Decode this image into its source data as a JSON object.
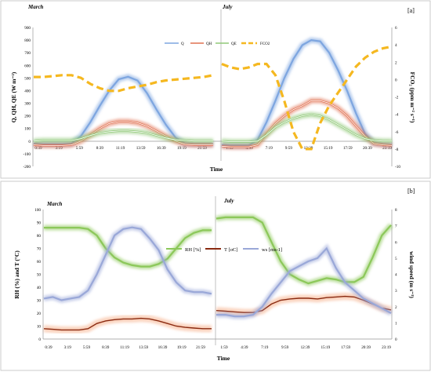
{
  "panel_labels": {
    "a": "[a]",
    "b": "[b]"
  },
  "charts": [
    {
      "id": "a",
      "months": [
        "March",
        "July"
      ],
      "xlabel": "Time",
      "ylabel": "Q, QH, QE (W m⁻²)",
      "y2label": "FCO₂ (ppm m⁻² s⁻¹)",
      "yticks": [
        "900",
        "800",
        "700",
        "600",
        "500",
        "400",
        "300",
        "200",
        "100",
        "0",
        "-100",
        "-200"
      ],
      "y2ticks": [
        "6",
        "4",
        "2",
        "0",
        "-2",
        "-4",
        "-6",
        "-8",
        "-10"
      ],
      "xticks_left": [
        "0:39",
        "3:19",
        "5:59",
        "8:39",
        "11:19",
        "13:59",
        "16:39",
        "19:19",
        "21:59"
      ],
      "xticks_right": [
        "1:59",
        "4:39",
        "7:19",
        "9:59",
        "12:39",
        "15:19",
        "17:59",
        "20:39",
        "23:19"
      ],
      "legend": [
        "Q",
        "QH",
        "QE",
        "FCO2"
      ]
    },
    {
      "id": "b",
      "months": [
        "March",
        "July"
      ],
      "xlabel": "Time",
      "ylabel": "RH (%) and T (°C)",
      "y2label": "wind speed (m s⁻¹)",
      "yticks": [
        "100",
        "90",
        "80",
        "70",
        "60",
        "50",
        "40",
        "30",
        "20",
        "10",
        "0"
      ],
      "y2ticks": [
        "8",
        "7",
        "6",
        "5",
        "4",
        "3",
        "2",
        "1",
        "0"
      ],
      "xticks_left": [
        "0:39",
        "3:19",
        "5:59",
        "8:39",
        "11:19",
        "13:59",
        "16:39",
        "19:19",
        "21:59"
      ],
      "xticks_right": [
        "1:59",
        "4:39",
        "7:19",
        "9:59",
        "12:39",
        "15:19",
        "17:59",
        "20:39",
        "23:19"
      ],
      "legend": [
        "RH [%]",
        "T [oC]",
        "ws [ms-1]"
      ]
    }
  ],
  "chart_data": [
    {
      "type": "line",
      "ylim": [
        -200,
        900
      ],
      "y2lim": [
        -10,
        6
      ],
      "series": [
        {
          "name": "Q",
          "axis": "left",
          "color": "#7ea6e0",
          "march": [
            -20,
            -25,
            -25,
            -25,
            -20,
            40,
            150,
            280,
            400,
            490,
            510,
            480,
            380,
            250,
            130,
            30,
            -20,
            -25,
            -25,
            -25
          ],
          "july": [
            -30,
            -35,
            -35,
            -35,
            10,
            150,
            320,
            500,
            650,
            760,
            800,
            790,
            700,
            560,
            400,
            220,
            60,
            -15,
            -25,
            -30
          ]
        },
        {
          "name": "QH",
          "axis": "left",
          "color": "#e07050",
          "march": [
            -30,
            -35,
            -35,
            -35,
            -30,
            0,
            50,
            100,
            140,
            155,
            155,
            145,
            120,
            80,
            40,
            0,
            -25,
            -30,
            -30,
            -30
          ],
          "july": [
            -40,
            -45,
            -45,
            -45,
            -30,
            60,
            140,
            200,
            250,
            280,
            320,
            320,
            300,
            260,
            200,
            120,
            40,
            -20,
            -30,
            -35
          ]
        },
        {
          "name": "QE",
          "axis": "left",
          "color": "#90c878",
          "march": [
            0,
            5,
            5,
            5,
            5,
            20,
            45,
            65,
            75,
            80,
            80,
            75,
            65,
            45,
            25,
            10,
            5,
            0,
            0,
            0
          ],
          "july": [
            0,
            -5,
            -5,
            -5,
            0,
            50,
            110,
            150,
            180,
            200,
            210,
            200,
            170,
            130,
            90,
            50,
            20,
            5,
            0,
            0
          ]
        },
        {
          "name": "FCO2",
          "axis": "right",
          "color": "#f5b820",
          "march": [
            0.3,
            0.3,
            0.4,
            0.5,
            0.5,
            0.2,
            -0.5,
            -1.0,
            -1.3,
            -1.3,
            -1.0,
            -0.8,
            -0.6,
            -0.3,
            -0.1,
            0,
            0.1,
            0.2,
            0.3,
            0.5
          ],
          "july": [
            1.8,
            1.4,
            1.2,
            1.4,
            1.8,
            1.8,
            0.5,
            -2.5,
            -6,
            -8,
            -8,
            -5,
            -3,
            -1.5,
            0,
            1.5,
            2.5,
            3.2,
            3.6,
            3.8
          ]
        }
      ]
    },
    {
      "type": "line",
      "ylim": [
        0,
        100
      ],
      "y2lim": [
        0,
        8
      ],
      "series": [
        {
          "name": "RH [%]",
          "axis": "left",
          "color": "#8cc85a",
          "march": [
            86,
            86,
            86,
            86,
            86,
            85,
            80,
            70,
            63,
            59,
            57,
            56,
            56,
            58,
            62,
            70,
            78,
            82,
            84,
            84
          ],
          "july": [
            93,
            94,
            94,
            94,
            94,
            90,
            75,
            60,
            50,
            46,
            43,
            45,
            47,
            46,
            44,
            44,
            48,
            63,
            80,
            88
          ]
        },
        {
          "name": "T [oC]",
          "axis": "left",
          "color": "#8a2a10",
          "march": [
            8,
            7.5,
            7,
            7,
            7,
            8,
            12,
            14,
            15,
            15.5,
            15.5,
            16,
            15.5,
            14,
            12,
            10,
            9,
            8.5,
            8,
            8
          ],
          "july": [
            22,
            21.5,
            21,
            20.5,
            20.5,
            22,
            27,
            30,
            31,
            31.5,
            31.5,
            31,
            32,
            32.5,
            33,
            32.5,
            30,
            27,
            24,
            22.5
          ]
        },
        {
          "name": "ws [ms-1]",
          "axis": "right",
          "color": "#9aa8d8",
          "march": [
            2.5,
            2.6,
            2.4,
            2.5,
            2.6,
            3.0,
            4.0,
            5.2,
            6.4,
            6.8,
            6.9,
            6.8,
            6.2,
            5.5,
            4.3,
            3.5,
            3.0,
            2.9,
            2.9,
            2.8
          ],
          "july": [
            1.5,
            1.5,
            1.4,
            1.4,
            1.5,
            2.0,
            2.8,
            3.5,
            4.2,
            4.5,
            4.8,
            5.0,
            5.6,
            4.4,
            3.5,
            3.0,
            2.5,
            2.2,
            1.9,
            1.6
          ]
        }
      ]
    }
  ]
}
